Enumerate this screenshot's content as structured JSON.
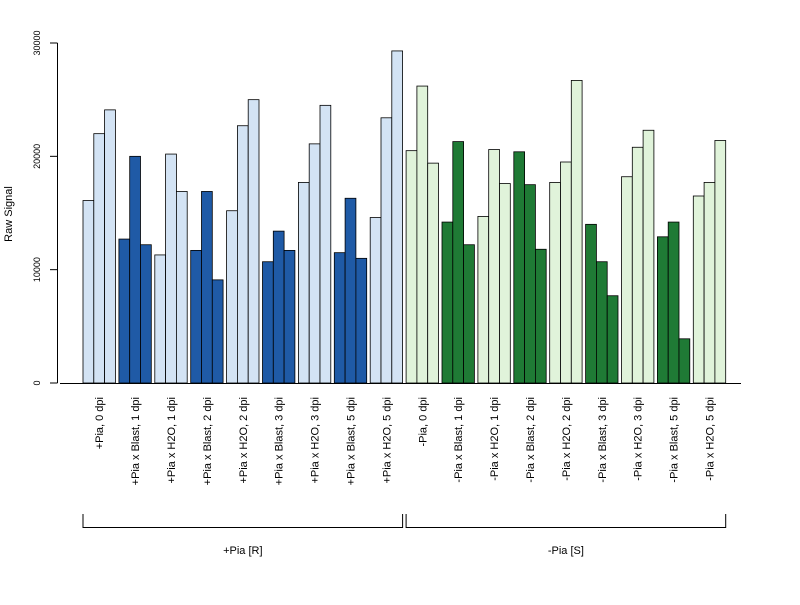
{
  "chart_data": {
    "type": "bar",
    "ylabel": "Raw Signal",
    "ylim": [
      0,
      30000
    ],
    "yticks": [
      0,
      10000,
      20000,
      30000
    ],
    "ytick_labels": [
      "0",
      "10000",
      "20000",
      "30000"
    ],
    "categories": [
      "+Pia, 0 dpi",
      "+Pia x Blast, 1 dpi",
      "+Pia x H2O, 1 dpi",
      "+Pia x Blast, 2 dpi",
      "+Pia x H2O, 2 dpi",
      "+Pia x Blast, 3 dpi",
      "+Pia x H2O, 3 dpi",
      "+Pia x Blast, 5 dpi",
      "+Pia x H2O, 5 dpi",
      "-Pia, 0 dpi",
      "-Pia x Blast, 1 dpi",
      "-Pia x H2O, 1 dpi",
      "-Pia x Blast, 2 dpi",
      "-Pia x H2O, 2 dpi",
      "-Pia x Blast, 3 dpi",
      "-Pia x H2O, 3 dpi",
      "-Pia x Blast, 5 dpi",
      "-Pia x H2O, 5 dpi"
    ],
    "replicates": [
      [
        16100,
        22000,
        24100
      ],
      [
        12700,
        20000,
        12200
      ],
      [
        11300,
        20200,
        16900
      ],
      [
        11700,
        16900,
        9100
      ],
      [
        15200,
        22700,
        25000
      ],
      [
        10700,
        13400,
        11700
      ],
      [
        17700,
        21100,
        24500
      ],
      [
        11500,
        16300,
        11000
      ],
      [
        14600,
        23400,
        29300
      ],
      [
        20500,
        26200,
        19400
      ],
      [
        14200,
        21300,
        12200
      ],
      [
        14700,
        20600,
        17600
      ],
      [
        20400,
        17500,
        11800
      ],
      [
        17700,
        19500,
        26700
      ],
      [
        14000,
        10700,
        7700
      ],
      [
        18200,
        20800,
        22300
      ],
      [
        12900,
        14200,
        3900
      ],
      [
        16500,
        17700,
        21400
      ]
    ],
    "bar_colors": [
      "#d3e3f4",
      "#1f5aa6",
      "#d3e3f4",
      "#1f5aa6",
      "#d3e3f4",
      "#1f5aa6",
      "#d3e3f4",
      "#1f5aa6",
      "#d3e3f4",
      "#e0f3da",
      "#1f7a35",
      "#e0f3da",
      "#1f7a35",
      "#e0f3da",
      "#1f7a35",
      "#e0f3da",
      "#1f7a35",
      "#e0f3da"
    ],
    "bar_border_color": "#000000",
    "groups": [
      {
        "label": "+Pia [R]",
        "first_category": 0,
        "last_category": 8
      },
      {
        "label": "-Pia [S]",
        "first_category": 9,
        "last_category": 17
      }
    ],
    "grid": false,
    "legend": "none"
  }
}
